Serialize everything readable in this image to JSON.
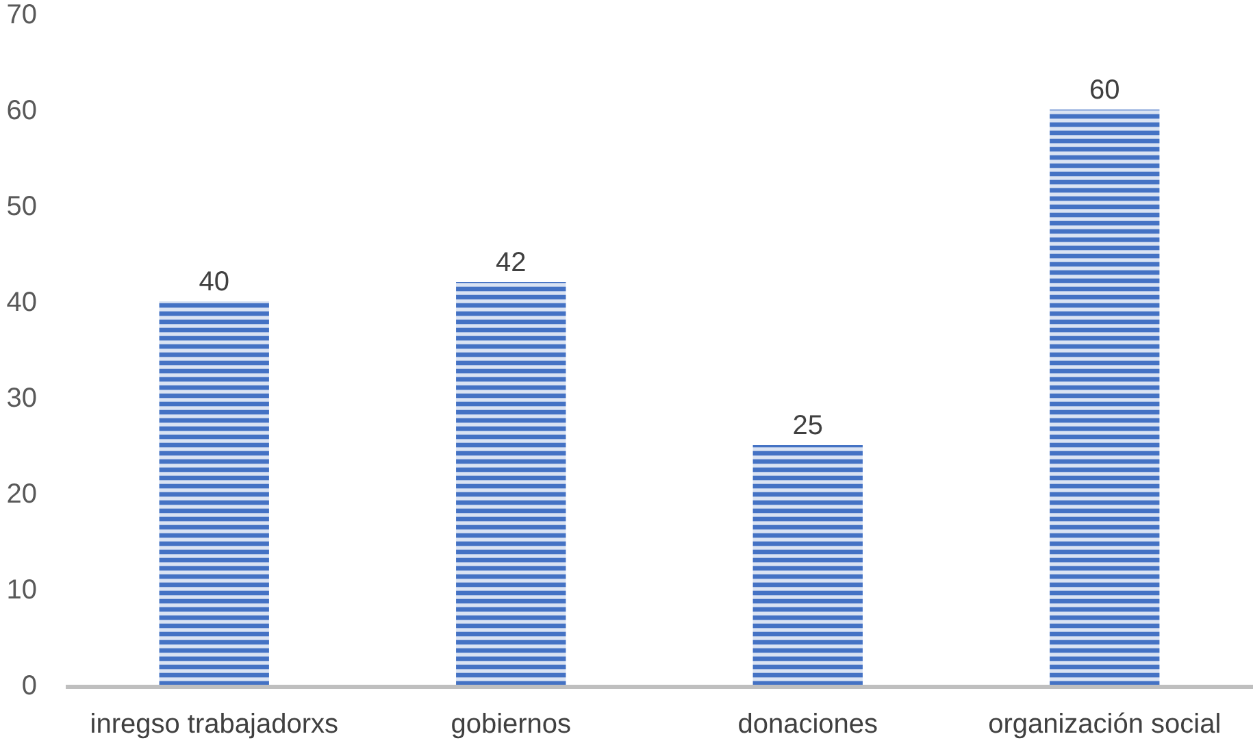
{
  "chart_data": {
    "type": "bar",
    "categories": [
      "inregso trabajadorxs",
      "gobiernos",
      "donaciones",
      "organización social"
    ],
    "values": [
      40,
      42,
      25,
      60
    ],
    "color": "#4472c4",
    "ylim": [
      0,
      70
    ],
    "yticks": [
      0,
      10,
      20,
      30,
      40,
      50,
      60,
      70
    ],
    "data_labels": true,
    "grid": false
  }
}
